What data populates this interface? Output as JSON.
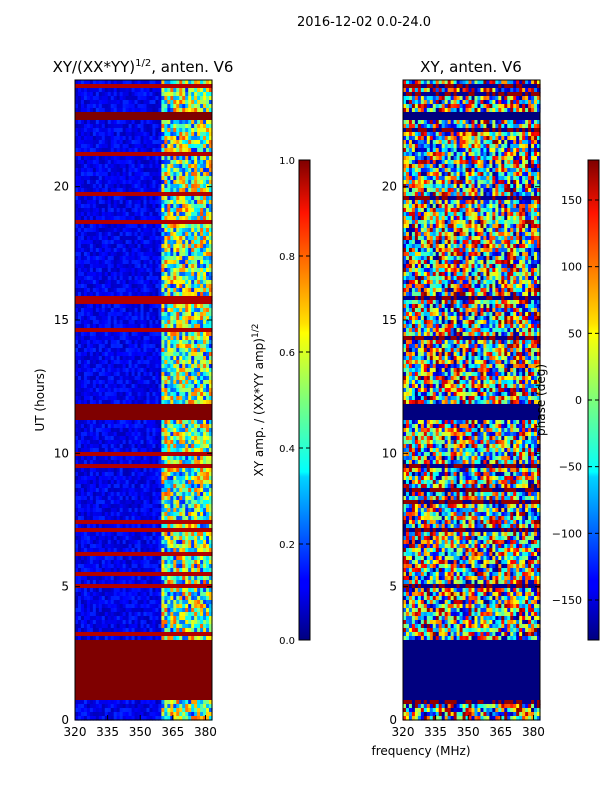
{
  "suptitle": "2016-12-02 0.0-24.0",
  "chart_data": [
    {
      "type": "heatmap",
      "title": "XY/(XX*YY)",
      "title_sup": "1/2",
      "title_suffix": ", anten. V6",
      "xlabel": "",
      "ylabel": "UT (hours)",
      "xlim": [
        320,
        383
      ],
      "ylim": [
        0,
        24
      ],
      "xticks": [
        320,
        335,
        350,
        365,
        380
      ],
      "yticks": [
        0,
        5,
        10,
        15,
        20
      ],
      "colorbar": {
        "label": "XY amp. / (XX*YY amp)",
        "label_sup": "1/2",
        "range": [
          0.0,
          1.0
        ],
        "ticks": [
          "0.0",
          "0.2",
          "0.4",
          "0.6",
          "0.8",
          "1.0"
        ]
      },
      "flagged_ut_ranges_hours": [
        [
          0.8,
          3.0
        ],
        [
          11.3,
          11.8
        ],
        [
          22.5,
          22.75
        ],
        [
          23.8,
          23.9
        ]
      ],
      "bright_frequency_band_mhz": [
        360,
        383
      ]
    },
    {
      "type": "heatmap",
      "title": "XY, anten. V6",
      "xlabel": "frequency (MHz)",
      "ylabel": "",
      "xlim": [
        320,
        383
      ],
      "ylim": [
        0,
        24
      ],
      "xticks": [
        320,
        335,
        350,
        365,
        380
      ],
      "yticks": [
        0,
        5,
        10,
        15,
        20
      ],
      "colorbar": {
        "label": "phase (deg)",
        "range": [
          -180,
          180
        ],
        "ticks": [
          "−150",
          "−100",
          "−50",
          "0",
          "50",
          "100",
          "150"
        ]
      },
      "flagged_ut_ranges_hours": [
        [
          0.8,
          3.0
        ],
        [
          11.3,
          11.8
        ],
        [
          22.5,
          22.75
        ]
      ]
    }
  ]
}
